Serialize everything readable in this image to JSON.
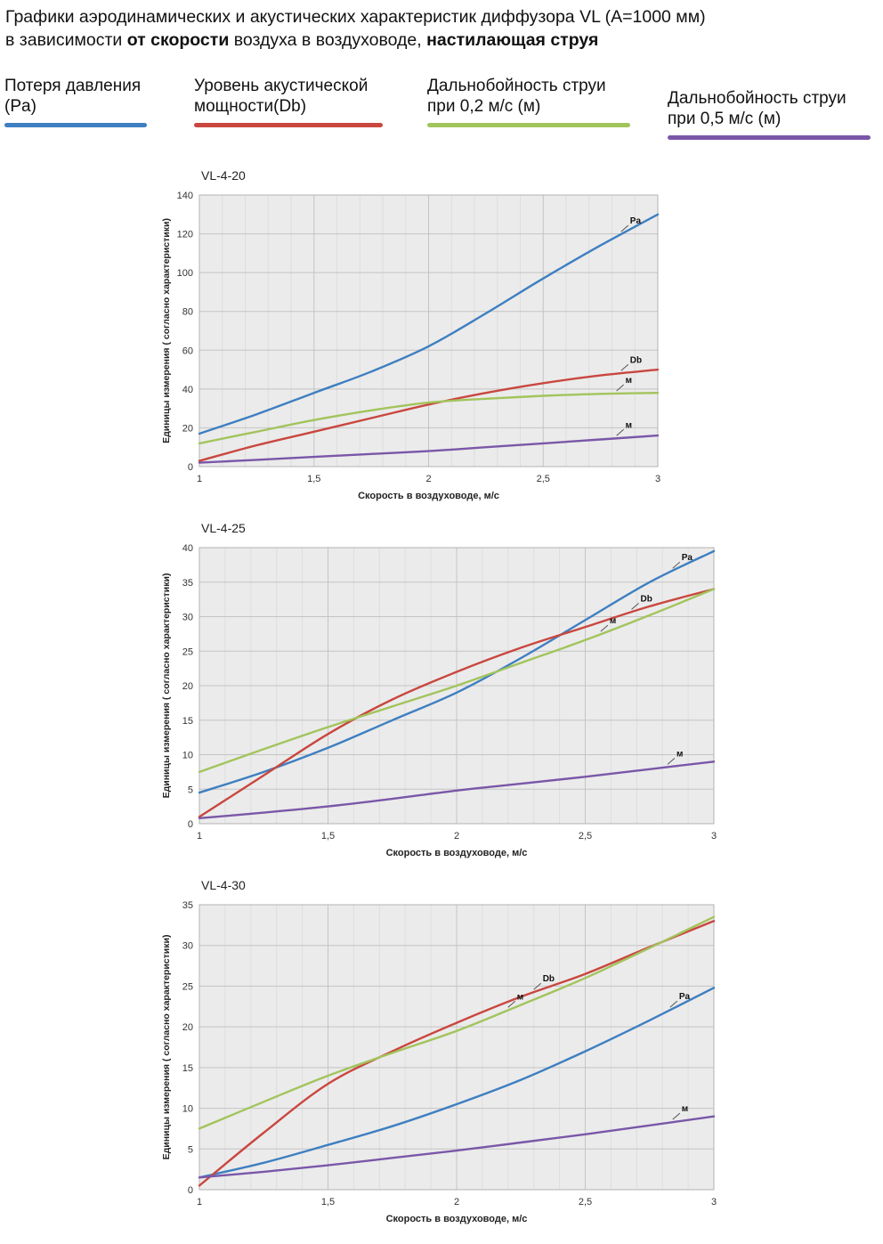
{
  "title": {
    "line1": "Графики аэродинамических и акустических характеристик  диффузора VL (A=1000 мм)",
    "line2a": "в зависимости ",
    "line2b": "от скорости",
    "line2c": " воздуха в воздуховоде, ",
    "line2d": "настилающая струя"
  },
  "legend": [
    {
      "line1": "Потеря давления",
      "line2": "(Pa)",
      "color": "#3e7fc1"
    },
    {
      "line1": "Уровень акустической",
      "line2": "мощности(Db)",
      "color": "#c9473f"
    },
    {
      "line1": "Дальнобойность струи",
      "line2": "при 0,2 м/с (м)",
      "color": "#a2c45c"
    },
    {
      "line1": "Дальнобойность струи",
      "line2": "при 0,5 м/с (м)",
      "color": "#7a57a8"
    }
  ],
  "chart_data": [
    {
      "type": "line",
      "title": "VL-4-20",
      "xlabel": "Скорость в воздуховоде, м/с",
      "ylabel": "Единицы измерения ( согласно характеристики)",
      "xlim": [
        1,
        3
      ],
      "ylim": [
        0,
        140
      ],
      "ytick_step": 20,
      "x_minor_step": 0.1,
      "grid": true,
      "xticks": [
        1,
        1.5,
        2,
        2.5,
        3
      ],
      "xtick_labels": [
        "1",
        "1,5",
        "2",
        "2,5",
        "3"
      ],
      "x": [
        1,
        1.25,
        1.5,
        1.75,
        2,
        2.25,
        2.5,
        2.75,
        3
      ],
      "series": [
        {
          "name": "Потеря давления (Pa)",
          "color": "#3e7fc1",
          "label": "Pa",
          "label_x": 2.84,
          "values": [
            17,
            27,
            38,
            49,
            62,
            79,
            97,
            114,
            130
          ]
        },
        {
          "name": "Уровень акустической мощности(Db)",
          "color": "#c9473f",
          "label": "Db",
          "label_x": 2.84,
          "values": [
            3,
            11,
            18,
            25,
            32,
            38,
            43,
            47,
            50
          ]
        },
        {
          "name": "Дальнобойность струи при 0,2 м/с (м)",
          "color": "#a2c45c",
          "label": "м",
          "label_x": 2.82,
          "values": [
            12,
            18,
            24,
            29,
            33,
            35,
            36.5,
            37.5,
            38
          ]
        },
        {
          "name": "Дальнобойность струи при 0,5 м/с (м)",
          "color": "#7a57a8",
          "label": "м",
          "label_x": 2.82,
          "values": [
            2,
            3.5,
            5,
            6.5,
            8,
            10,
            12,
            14,
            16
          ]
        }
      ]
    },
    {
      "type": "line",
      "title": "VL-4-25",
      "xlabel": "Скорость в воздуховоде, м/с",
      "ylabel": "Единицы измерения ( согласно характеристики)",
      "xlim": [
        1,
        3
      ],
      "ylim": [
        0,
        40
      ],
      "ytick_step": 5,
      "x_minor_step": 0.1,
      "grid": true,
      "xticks": [
        1,
        1.5,
        2,
        2.5,
        3
      ],
      "xtick_labels": [
        "1",
        "1,5",
        "2",
        "2,5",
        "3"
      ],
      "x": [
        1,
        1.25,
        1.5,
        1.75,
        2,
        2.25,
        2.5,
        2.75,
        3
      ],
      "series": [
        {
          "name": "Потеря давления (Pa)",
          "color": "#3e7fc1",
          "label": "Pa",
          "label_x": 2.84,
          "values": [
            4.5,
            7.5,
            11,
            15,
            19,
            24,
            29.5,
            35,
            39.5
          ]
        },
        {
          "name": "Уровень акустической мощности(Db)",
          "color": "#c9473f",
          "label": "Db",
          "label_x": 2.68,
          "values": [
            1,
            7,
            13,
            18,
            22,
            25.5,
            28.5,
            31.5,
            34
          ]
        },
        {
          "name": "Дальнобойность струи при 0,2 м/с (м)",
          "color": "#a2c45c",
          "label": "м",
          "label_x": 2.56,
          "values": [
            7.5,
            10.8,
            14,
            17,
            20,
            23.3,
            26.6,
            30.2,
            34
          ]
        },
        {
          "name": "Дальнобойность струи при 0,5 м/с (м)",
          "color": "#7a57a8",
          "label": "м",
          "label_x": 2.82,
          "values": [
            0.8,
            1.6,
            2.5,
            3.6,
            4.8,
            5.8,
            6.8,
            7.9,
            9
          ]
        }
      ]
    },
    {
      "type": "line",
      "title": "VL-4-30",
      "xlabel": "Скорость в воздуховоде, м/с",
      "ylabel": "Единицы измерения ( согласно характеристики)",
      "xlim": [
        1,
        3
      ],
      "ylim": [
        0,
        35
      ],
      "ytick_step": 5,
      "x_minor_step": 0.1,
      "grid": true,
      "xticks": [
        1,
        1.5,
        2,
        2.5,
        3
      ],
      "xtick_labels": [
        "1",
        "1,5",
        "2",
        "2,5",
        "3"
      ],
      "x": [
        1,
        1.25,
        1.5,
        1.75,
        2,
        2.25,
        2.5,
        2.75,
        3
      ],
      "series": [
        {
          "name": "Потеря давления (Pa)",
          "color": "#3e7fc1",
          "label": "Pa",
          "label_x": 2.83,
          "values": [
            1.5,
            3.3,
            5.5,
            7.8,
            10.5,
            13.5,
            17,
            20.8,
            24.8
          ]
        },
        {
          "name": "Уровень акустической мощности(Db)",
          "color": "#c9473f",
          "label": "Db",
          "label_x": 2.3,
          "values": [
            0.5,
            7,
            13,
            17,
            20.5,
            23.7,
            26.5,
            29.8,
            33
          ]
        },
        {
          "name": "Дальнобойность струи при 0,2 м/с (м)",
          "color": "#a2c45c",
          "label": "м",
          "label_x": 2.2,
          "values": [
            7.5,
            10.8,
            14,
            16.8,
            19.5,
            22.7,
            26,
            29.7,
            33.5
          ]
        },
        {
          "name": "Дальнобойность струи при 0,5 м/с (м)",
          "color": "#7a57a8",
          "label": "м",
          "label_x": 2.84,
          "values": [
            1.5,
            2.2,
            3,
            3.9,
            4.8,
            5.8,
            6.8,
            7.9,
            9
          ]
        }
      ]
    }
  ]
}
